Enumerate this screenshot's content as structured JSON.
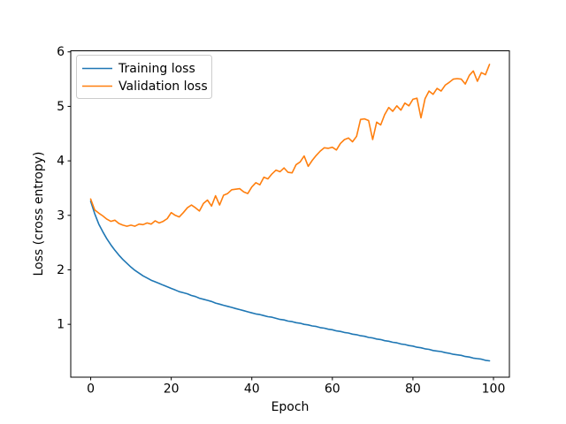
{
  "figure": {
    "background": "#ffffff"
  },
  "chart_data": {
    "type": "line",
    "title": "",
    "xlabel": "Epoch",
    "ylabel": "Loss (cross entropy)",
    "xlim": [
      -4.95,
      103.95
    ],
    "ylim": [
      0.03,
      6.02
    ],
    "xticks": [
      0,
      20,
      40,
      60,
      80,
      100
    ],
    "yticks": [
      1,
      2,
      3,
      4,
      5,
      6
    ],
    "grid": false,
    "legend": {
      "location": "upper left",
      "border_color": "#cccccc",
      "background": "#ffffff"
    },
    "axis_color": "#000000",
    "x": [
      0,
      1,
      2,
      3,
      4,
      5,
      6,
      7,
      8,
      9,
      10,
      11,
      12,
      13,
      14,
      15,
      16,
      17,
      18,
      19,
      20,
      21,
      22,
      23,
      24,
      25,
      26,
      27,
      28,
      29,
      30,
      31,
      32,
      33,
      34,
      35,
      36,
      37,
      38,
      39,
      40,
      41,
      42,
      43,
      44,
      45,
      46,
      47,
      48,
      49,
      50,
      51,
      52,
      53,
      54,
      55,
      56,
      57,
      58,
      59,
      60,
      61,
      62,
      63,
      64,
      65,
      66,
      67,
      68,
      69,
      70,
      71,
      72,
      73,
      74,
      75,
      76,
      77,
      78,
      79,
      80,
      81,
      82,
      83,
      84,
      85,
      86,
      87,
      88,
      89,
      90,
      91,
      92,
      93,
      94,
      95,
      96,
      97,
      98,
      99
    ],
    "series": [
      {
        "name": "Training loss",
        "color": "#1f77b4",
        "values": [
          3.26,
          3.03,
          2.84,
          2.7,
          2.57,
          2.46,
          2.36,
          2.27,
          2.19,
          2.12,
          2.05,
          1.99,
          1.94,
          1.89,
          1.85,
          1.81,
          1.78,
          1.75,
          1.72,
          1.69,
          1.66,
          1.63,
          1.6,
          1.58,
          1.56,
          1.53,
          1.51,
          1.48,
          1.46,
          1.44,
          1.42,
          1.39,
          1.37,
          1.35,
          1.33,
          1.31,
          1.29,
          1.27,
          1.25,
          1.23,
          1.21,
          1.19,
          1.18,
          1.16,
          1.14,
          1.13,
          1.11,
          1.09,
          1.08,
          1.06,
          1.05,
          1.03,
          1.02,
          1.0,
          0.99,
          0.97,
          0.96,
          0.94,
          0.93,
          0.91,
          0.9,
          0.88,
          0.87,
          0.85,
          0.84,
          0.82,
          0.81,
          0.79,
          0.78,
          0.76,
          0.75,
          0.73,
          0.72,
          0.7,
          0.69,
          0.67,
          0.66,
          0.64,
          0.63,
          0.61,
          0.6,
          0.58,
          0.57,
          0.55,
          0.54,
          0.52,
          0.51,
          0.5,
          0.48,
          0.47,
          0.45,
          0.44,
          0.43,
          0.41,
          0.4,
          0.38,
          0.37,
          0.36,
          0.34,
          0.33
        ]
      },
      {
        "name": "Validation loss",
        "color": "#ff7f0e",
        "values": [
          3.3,
          3.1,
          3.04,
          2.99,
          2.93,
          2.89,
          2.91,
          2.85,
          2.82,
          2.8,
          2.82,
          2.8,
          2.84,
          2.83,
          2.86,
          2.84,
          2.9,
          2.86,
          2.89,
          2.94,
          3.05,
          3.0,
          2.97,
          3.05,
          3.14,
          3.19,
          3.14,
          3.08,
          3.22,
          3.28,
          3.17,
          3.36,
          3.19,
          3.37,
          3.4,
          3.47,
          3.48,
          3.49,
          3.43,
          3.4,
          3.52,
          3.6,
          3.56,
          3.7,
          3.67,
          3.76,
          3.83,
          3.8,
          3.87,
          3.79,
          3.78,
          3.93,
          3.98,
          4.09,
          3.9,
          4.01,
          4.1,
          4.18,
          4.24,
          4.23,
          4.25,
          4.2,
          4.32,
          4.39,
          4.42,
          4.35,
          4.45,
          4.76,
          4.77,
          4.74,
          4.39,
          4.71,
          4.66,
          4.85,
          4.98,
          4.91,
          5.01,
          4.93,
          5.06,
          5.01,
          5.13,
          5.15,
          4.79,
          5.14,
          5.28,
          5.22,
          5.33,
          5.28,
          5.39,
          5.44,
          5.5,
          5.51,
          5.5,
          5.41,
          5.57,
          5.65,
          5.46,
          5.62,
          5.58,
          5.77
        ]
      }
    ]
  }
}
